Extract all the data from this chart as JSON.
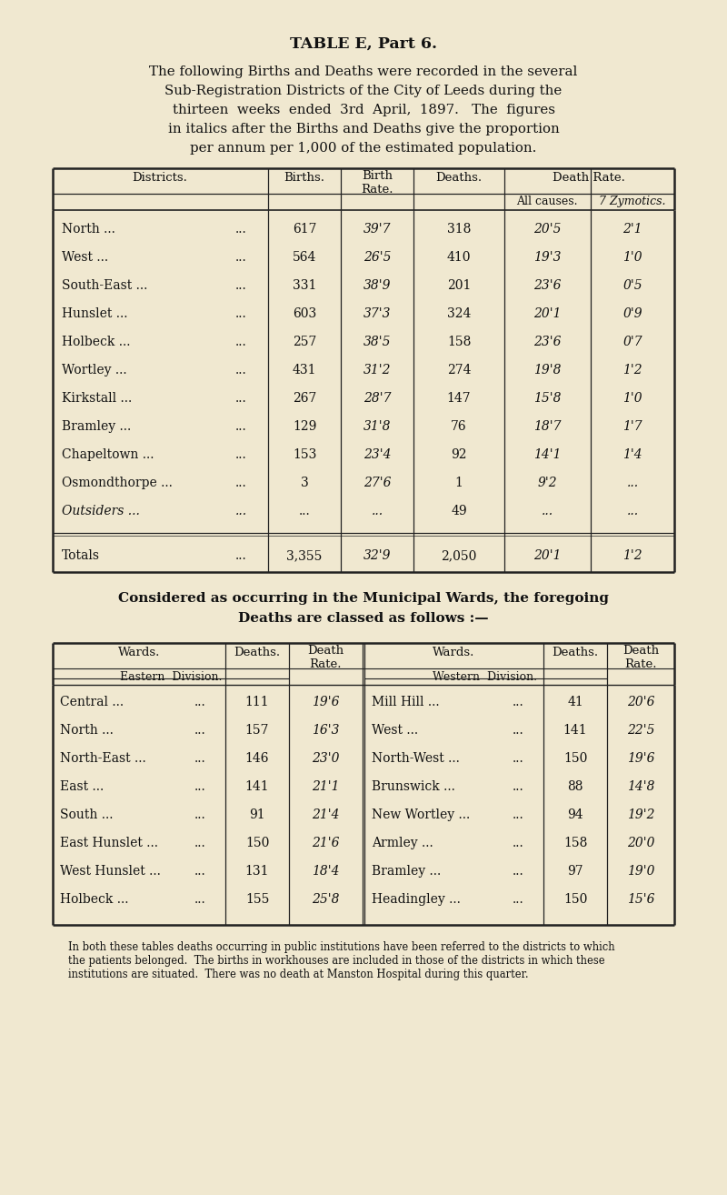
{
  "bg_color": "#f0e8d0",
  "title": "TABLE E, Part 6.",
  "intro_lines": [
    "The following Births and Deaths were recorded in the several",
    "Sub-Registration Districts of the City of Leeds during the",
    "thirteen  weeks  ended  3rd  April,  1897.   The  figures",
    "in italics after the Births and Deaths give the proportion",
    "per annum per 1,000 of the estimated population."
  ],
  "t1_rows": [
    [
      "North",
      "...",
      "...",
      "617",
      "39'7",
      "318",
      "20'5",
      "2'1",
      false
    ],
    [
      "West",
      "...",
      "...",
      "564",
      "26'5",
      "410",
      "19'3",
      "1'0",
      false
    ],
    [
      "South-East",
      "...",
      "...",
      "331",
      "38'9",
      "201",
      "23'6",
      "0'5",
      false
    ],
    [
      "Hunslet",
      "...",
      "...",
      "603",
      "37'3",
      "324",
      "20'1",
      "0'9",
      false
    ],
    [
      "Holbeck",
      "...",
      "...",
      "257",
      "38'5",
      "158",
      "23'6",
      "0'7",
      false
    ],
    [
      "Wortley",
      "...",
      "...",
      "431",
      "31'2",
      "274",
      "19'8",
      "1'2",
      false
    ],
    [
      "Kirkstall",
      "...",
      "...",
      "267",
      "28'7",
      "147",
      "15'8",
      "1'0",
      false
    ],
    [
      "Bramley",
      "...",
      "...",
      "129",
      "31'8",
      "76",
      "18'7",
      "1'7",
      false
    ],
    [
      "Chapeltown",
      "...",
      "...",
      "153",
      "23'4",
      "92",
      "14'1",
      "1'4",
      false
    ],
    [
      "Osmondthorpe",
      "...",
      "...",
      "3",
      "27'6",
      "1",
      "9'2",
      "...",
      false
    ],
    [
      "Outsiders",
      "...",
      "...",
      "...",
      "...",
      "49",
      "...",
      "...",
      true
    ]
  ],
  "t1_totals": [
    "Totals",
    "...",
    "3,355",
    "32'9",
    "2,050",
    "20'1",
    "1'2"
  ],
  "s2_lines": [
    "Considered as occurring in the Municipal Wards, the foregoing",
    "Deaths are classed as follows :—"
  ],
  "t2_rows": [
    [
      "Central",
      "...",
      "...",
      "111",
      "19'6",
      "Mill Hill",
      "...",
      "...",
      "41",
      "20'6"
    ],
    [
      "North",
      "...",
      "...",
      "157",
      "16'3",
      "West",
      "...",
      "...",
      "141",
      "22'5"
    ],
    [
      "North-East",
      "...",
      "...",
      "146",
      "23'0",
      "North-West",
      "...",
      "...",
      "150",
      "19'6"
    ],
    [
      "East",
      "...",
      "...",
      "141",
      "21'1",
      "Brunswick",
      "...",
      "...",
      "88",
      "14'8"
    ],
    [
      "South",
      "...",
      "...",
      "91",
      "21'4",
      "New Wortley",
      "...",
      "...",
      "94",
      "19'2"
    ],
    [
      "East Hunslet",
      "...",
      "...",
      "150",
      "21'6",
      "Armley",
      "...",
      "...",
      "158",
      "20'0"
    ],
    [
      "West Hunslet",
      "...",
      "...",
      "131",
      "18'4",
      "Bramley",
      "...",
      "...",
      "97",
      "19'0"
    ],
    [
      "Holbeck",
      "...",
      "...",
      "155",
      "25'8",
      "Headingley",
      "...",
      "...",
      "150",
      "15'6"
    ]
  ],
  "footnote": [
    "In both these tables deaths occurring in public institutions have been referred to the districts to which",
    "the patients belonged.  The births in workhouses are included in those of the districts in which these",
    "institutions are situated.  There was no death at Manston Hospital during this quarter."
  ]
}
